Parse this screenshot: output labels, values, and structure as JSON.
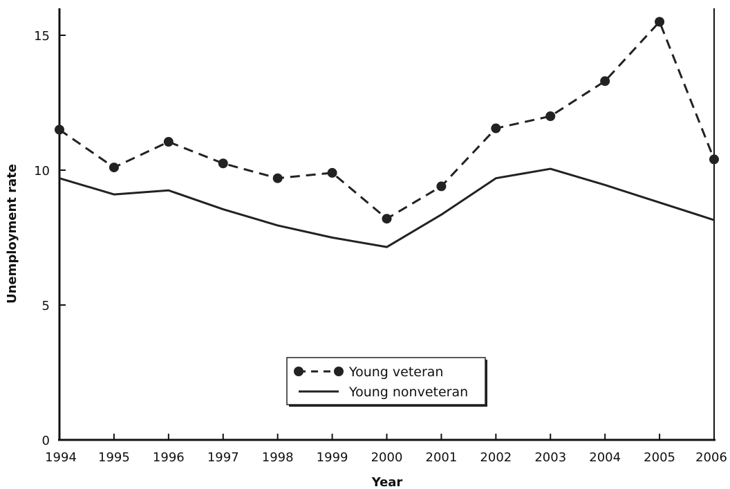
{
  "chart_data": {
    "type": "line",
    "x": [
      "1994",
      "1995",
      "1996",
      "1997",
      "1998",
      "1999",
      "2000",
      "2001",
      "2002",
      "2003",
      "2004",
      "2005",
      "2006"
    ],
    "series": [
      {
        "name": "Young veteran",
        "values": [
          11.5,
          10.1,
          11.05,
          10.25,
          9.7,
          9.9,
          8.2,
          9.4,
          11.55,
          12.0,
          13.3,
          15.5,
          10.4
        ],
        "style": "dashed",
        "marker": "circle",
        "color": "#222222"
      },
      {
        "name": "Young nonveteran",
        "values": [
          9.7,
          9.1,
          9.25,
          8.55,
          7.95,
          7.5,
          7.15,
          8.35,
          9.7,
          10.05,
          9.45,
          8.8,
          8.15
        ],
        "style": "solid",
        "marker": "none",
        "color": "#222222"
      }
    ],
    "xlabel": "Year",
    "ylabel": "Unemployment rate",
    "ylim": [
      0,
      16
    ],
    "yticks": [
      "0",
      "5",
      "10",
      "15"
    ],
    "grid": false,
    "legend_position": "bottom-center"
  }
}
